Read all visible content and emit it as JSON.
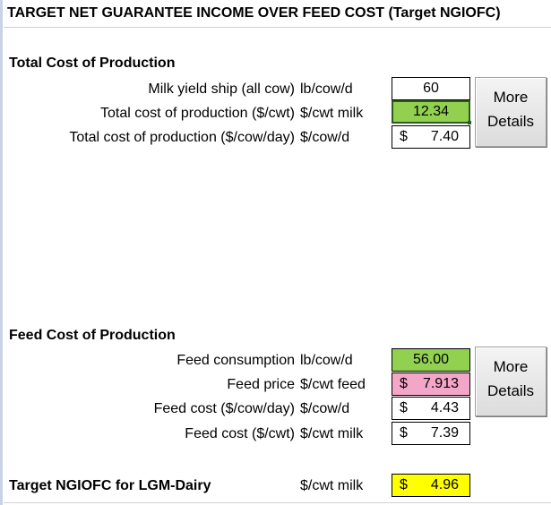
{
  "title": "TARGET NET GUARANTEE INCOME OVER FEED COST (Target NGIOFC)",
  "total_cost": {
    "heading": "Total Cost of Production",
    "rows": [
      {
        "label": "Milk yield ship (all cow)",
        "unit": "lb/cow/d",
        "currency": "",
        "value": "60"
      },
      {
        "label": "Total cost of production ($/cwt)",
        "unit": "$/cwt milk",
        "currency": "",
        "value": "12.34"
      },
      {
        "label": "Total cost of production ($/cow/day)",
        "unit": "$/cow/d",
        "currency": "$",
        "value": "7.40"
      }
    ],
    "more_details_button": {
      "line1": "More",
      "line2": "Details"
    }
  },
  "feed_cost": {
    "heading": "Feed Cost of Production",
    "rows": [
      {
        "label": "Feed consumption",
        "unit": "lb/cow/d",
        "currency": "",
        "value": "56.00"
      },
      {
        "label": "Feed price",
        "unit": "$/cwt feed",
        "currency": "$",
        "value": "7.913"
      },
      {
        "label": "Feed cost ($/cow/day)",
        "unit": "$/cow/d",
        "currency": "$",
        "value": "4.43"
      },
      {
        "label": "Feed cost ($/cwt)",
        "unit": "$/cwt milk",
        "currency": "$",
        "value": "7.39"
      }
    ],
    "more_details_button": {
      "line1": "More",
      "line2": "Details"
    }
  },
  "target": {
    "label": "Target NGIOFC for LGM-Dairy",
    "unit": "$/cwt milk",
    "currency": "$",
    "value": "4.96"
  },
  "colors": {
    "input_green": "#92d050",
    "input_pink": "#f4a6c8",
    "result_yellow": "#ffff00"
  }
}
